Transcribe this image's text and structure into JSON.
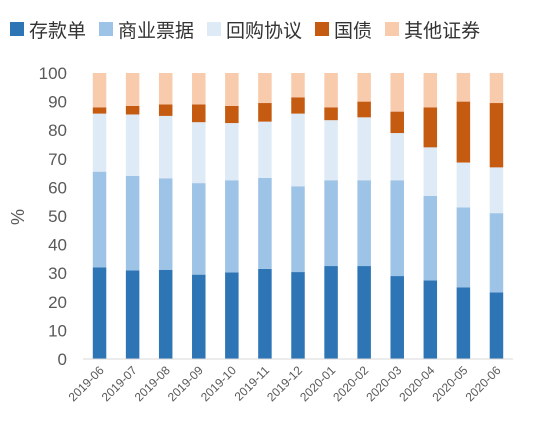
{
  "chart_data": {
    "type": "bar",
    "stacked": true,
    "ylabel": "%",
    "ylim": [
      0,
      100
    ],
    "yticks": [
      0,
      10,
      20,
      30,
      40,
      50,
      60,
      70,
      80,
      90,
      100
    ],
    "grid": false,
    "legend_position": "top",
    "categories": [
      "2019-06",
      "2019-07",
      "2019-08",
      "2019-09",
      "2019-10",
      "2019-11",
      "2019-12",
      "2020-01",
      "2020-02",
      "2020-03",
      "2020-04",
      "2020-05",
      "2020-06"
    ],
    "series": [
      {
        "name": "存款单",
        "color": "#2e75b6",
        "values": [
          32.0,
          31.0,
          31.2,
          29.5,
          30.3,
          31.5,
          30.4,
          32.5,
          32.5,
          29.0,
          27.5,
          25.0,
          23.3
        ]
      },
      {
        "name": "商业票据",
        "color": "#9dc3e6",
        "values": [
          33.5,
          33.0,
          32.0,
          32.0,
          32.2,
          31.8,
          30.0,
          30.0,
          30.0,
          33.5,
          29.5,
          28.0,
          27.7
        ]
      },
      {
        "name": "回购协议",
        "color": "#deebf7",
        "values": [
          20.3,
          21.5,
          21.8,
          21.3,
          20.0,
          19.7,
          25.4,
          21.0,
          22.0,
          16.5,
          17.0,
          15.7,
          16.0
        ]
      },
      {
        "name": "国债",
        "color": "#c55a11",
        "values": [
          2.2,
          3.0,
          4.0,
          6.2,
          6.0,
          6.5,
          5.7,
          4.5,
          5.5,
          7.5,
          14.0,
          21.3,
          22.5
        ]
      },
      {
        "name": "其他证券",
        "color": "#f8cbad",
        "values": [
          12.0,
          11.5,
          11.0,
          11.0,
          11.5,
          10.5,
          8.5,
          12.0,
          10.0,
          13.5,
          12.0,
          10.0,
          10.5
        ]
      }
    ]
  }
}
